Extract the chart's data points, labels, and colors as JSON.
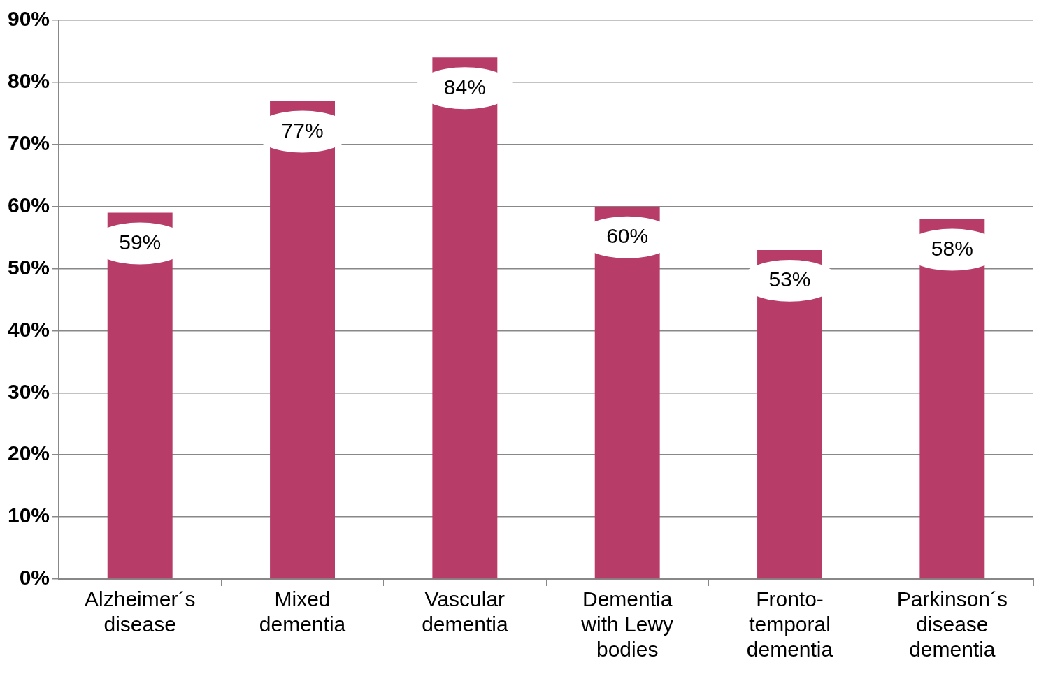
{
  "chart_data": {
    "type": "bar",
    "categories": [
      "Alzheimer´s disease",
      "Mixed dementia",
      "Vascular dementia",
      "Dementia with Lewy bodies",
      "Fronto-temporal dementia",
      "Parkinson´s disease dementia"
    ],
    "values": [
      59,
      77,
      84,
      60,
      53,
      58
    ],
    "value_labels": [
      "59%",
      "77%",
      "84%",
      "60%",
      "53%",
      "58%"
    ],
    "color": "#b83c68",
    "ylim": [
      0,
      90
    ],
    "yticks": [
      {
        "value": 0,
        "label": "0%"
      },
      {
        "value": 10,
        "label": "10%"
      },
      {
        "value": 20,
        "label": "20%"
      },
      {
        "value": 30,
        "label": "30%"
      },
      {
        "value": 40,
        "label": "40%"
      },
      {
        "value": 50,
        "label": "50%"
      },
      {
        "value": 60,
        "label": "60%"
      },
      {
        "value": 70,
        "label": "70%"
      },
      {
        "value": 80,
        "label": "80%"
      },
      {
        "value": 90,
        "label": "90%"
      }
    ],
    "grid": "y",
    "legend": false
  }
}
